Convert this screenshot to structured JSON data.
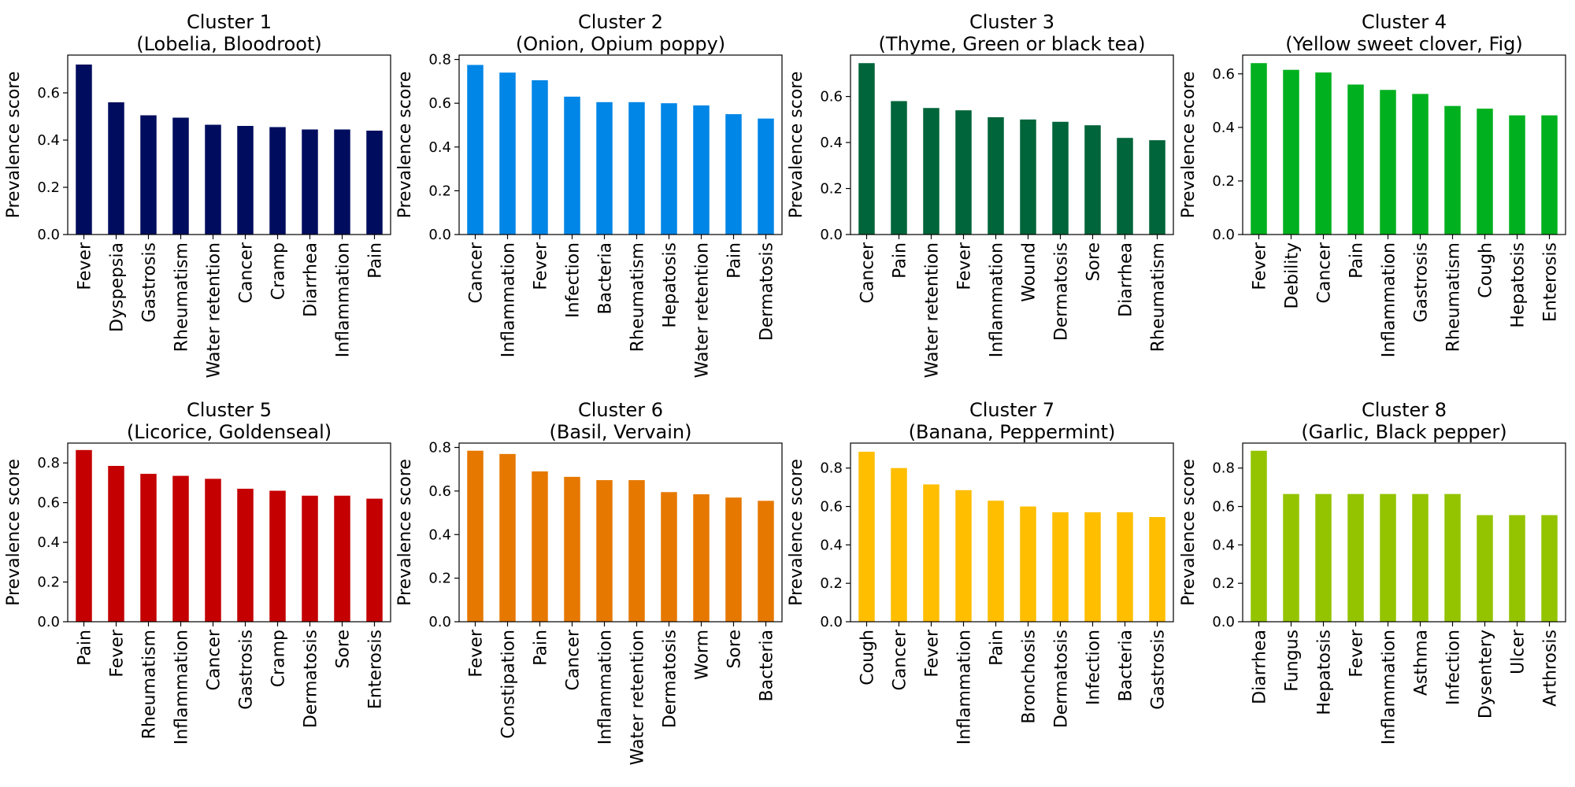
{
  "colors": [
    "#000d5e",
    "#0086e6",
    "#00653a",
    "#00b01e",
    "#c40000",
    "#e67800",
    "#ffbe00",
    "#94c400"
  ],
  "chart_data": [
    {
      "type": "bar",
      "title": "Cluster 1",
      "subtitle": "(Lobelia, Bloodroot)",
      "ylabel": "Prevalence score",
      "ylim": [
        0,
        0.76
      ],
      "yticks": [
        0.0,
        0.2,
        0.4,
        0.6
      ],
      "categories": [
        "Fever",
        "Dyspepsia",
        "Gastrosis",
        "Rheumatism",
        "Water retention",
        "Cancer",
        "Cramp",
        "Diarrhea",
        "Inflammation",
        "Pain"
      ],
      "values": [
        0.72,
        0.56,
        0.505,
        0.495,
        0.465,
        0.46,
        0.455,
        0.445,
        0.445,
        0.44
      ]
    },
    {
      "type": "bar",
      "title": "Cluster 2",
      "subtitle": "(Onion, Opium poppy)",
      "ylabel": "Prevalence score",
      "ylim": [
        0,
        0.82
      ],
      "yticks": [
        0.0,
        0.2,
        0.4,
        0.6,
        0.8
      ],
      "categories": [
        "Cancer",
        "Inflammation",
        "Fever",
        "Infection",
        "Bacteria",
        "Rheumatism",
        "Hepatosis",
        "Water retention",
        "Pain",
        "Dermatosis"
      ],
      "values": [
        0.775,
        0.74,
        0.705,
        0.63,
        0.605,
        0.605,
        0.6,
        0.59,
        0.55,
        0.53
      ]
    },
    {
      "type": "bar",
      "title": "Cluster 3",
      "subtitle": "(Thyme, Green or black tea)",
      "ylabel": "Prevalence score",
      "ylim": [
        0,
        0.78
      ],
      "yticks": [
        0.0,
        0.2,
        0.4,
        0.6
      ],
      "categories": [
        "Cancer",
        "Pain",
        "Water retention",
        "Fever",
        "Inflammation",
        "Wound",
        "Dermatosis",
        "Sore",
        "Diarrhea",
        "Rheumatism"
      ],
      "values": [
        0.745,
        0.58,
        0.55,
        0.54,
        0.51,
        0.5,
        0.49,
        0.475,
        0.42,
        0.41
      ]
    },
    {
      "type": "bar",
      "title": "Cluster 4",
      "subtitle": "(Yellow sweet clover, Fig)",
      "ylabel": "Prevalence score",
      "ylim": [
        0,
        0.67
      ],
      "yticks": [
        0.0,
        0.2,
        0.4,
        0.6
      ],
      "categories": [
        "Fever",
        "Debility",
        "Cancer",
        "Pain",
        "Inflammation",
        "Gastrosis",
        "Rheumatism",
        "Cough",
        "Hepatosis",
        "Enterosis"
      ],
      "values": [
        0.64,
        0.615,
        0.605,
        0.56,
        0.54,
        0.525,
        0.48,
        0.47,
        0.445,
        0.445
      ]
    },
    {
      "type": "bar",
      "title": "Cluster 5",
      "subtitle": "(Licorice, Goldenseal)",
      "ylabel": "Prevalence score",
      "ylim": [
        0,
        0.9
      ],
      "yticks": [
        0.0,
        0.2,
        0.4,
        0.6,
        0.8
      ],
      "categories": [
        "Pain",
        "Fever",
        "Rheumatism",
        "Inflammation",
        "Cancer",
        "Gastrosis",
        "Cramp",
        "Dermatosis",
        "Sore",
        "Enterosis"
      ],
      "values": [
        0.865,
        0.785,
        0.745,
        0.735,
        0.72,
        0.67,
        0.66,
        0.635,
        0.635,
        0.62
      ]
    },
    {
      "type": "bar",
      "title": "Cluster 6",
      "subtitle": "(Basil, Vervain)",
      "ylabel": "Prevalence score",
      "ylim": [
        0,
        0.82
      ],
      "yticks": [
        0.0,
        0.2,
        0.4,
        0.6,
        0.8
      ],
      "categories": [
        "Fever",
        "Constipation",
        "Pain",
        "Cancer",
        "Inflammation",
        "Water retention",
        "Dermatosis",
        "Worm",
        "Sore",
        "Bacteria"
      ],
      "values": [
        0.785,
        0.77,
        0.69,
        0.665,
        0.65,
        0.65,
        0.595,
        0.585,
        0.57,
        0.555
      ]
    },
    {
      "type": "bar",
      "title": "Cluster 7",
      "subtitle": "(Banana, Peppermint)",
      "ylabel": "Prevalence score",
      "ylim": [
        0,
        0.93
      ],
      "yticks": [
        0.0,
        0.2,
        0.4,
        0.6,
        0.8
      ],
      "categories": [
        "Cough",
        "Cancer",
        "Fever",
        "Inflammation",
        "Pain",
        "Bronchosis",
        "Dermatosis",
        "Infection",
        "Bacteria",
        "Gastrosis"
      ],
      "values": [
        0.885,
        0.8,
        0.715,
        0.685,
        0.63,
        0.6,
        0.57,
        0.57,
        0.57,
        0.545
      ]
    },
    {
      "type": "bar",
      "title": "Cluster 8",
      "subtitle": "(Garlic, Black pepper)",
      "ylabel": "Prevalence score",
      "ylim": [
        0,
        0.93
      ],
      "yticks": [
        0.0,
        0.2,
        0.4,
        0.6,
        0.8
      ],
      "categories": [
        "Diarrhea",
        "Fungus",
        "Hepatosis",
        "Fever",
        "Inflammation",
        "Asthma",
        "Infection",
        "Dysentery",
        "Ulcer",
        "Arthrosis"
      ],
      "values": [
        0.89,
        0.665,
        0.665,
        0.665,
        0.665,
        0.665,
        0.665,
        0.555,
        0.555,
        0.555
      ]
    }
  ]
}
